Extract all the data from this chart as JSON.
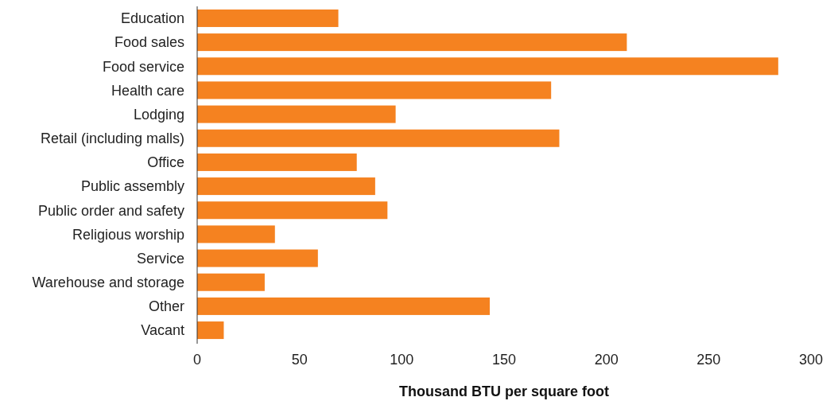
{
  "chart_data": {
    "type": "bar",
    "orientation": "horizontal",
    "xlabel": "Thousand BTU per square foot",
    "categories": [
      "Education",
      "Food sales",
      "Food service",
      "Health care",
      "Lodging",
      "Retail (including malls)",
      "Office",
      "Public assembly",
      "Public order and safety",
      "Religious worship",
      "Service",
      "Warehouse and storage",
      "Other",
      "Vacant"
    ],
    "values": [
      69,
      210,
      284,
      173,
      97,
      177,
      78,
      87,
      93,
      38,
      59,
      33,
      143,
      13
    ],
    "color": "#f58220",
    "xlim": [
      0,
      300
    ],
    "xticks": [
      0,
      50,
      100,
      150,
      200,
      250,
      300
    ],
    "grid": false
  }
}
